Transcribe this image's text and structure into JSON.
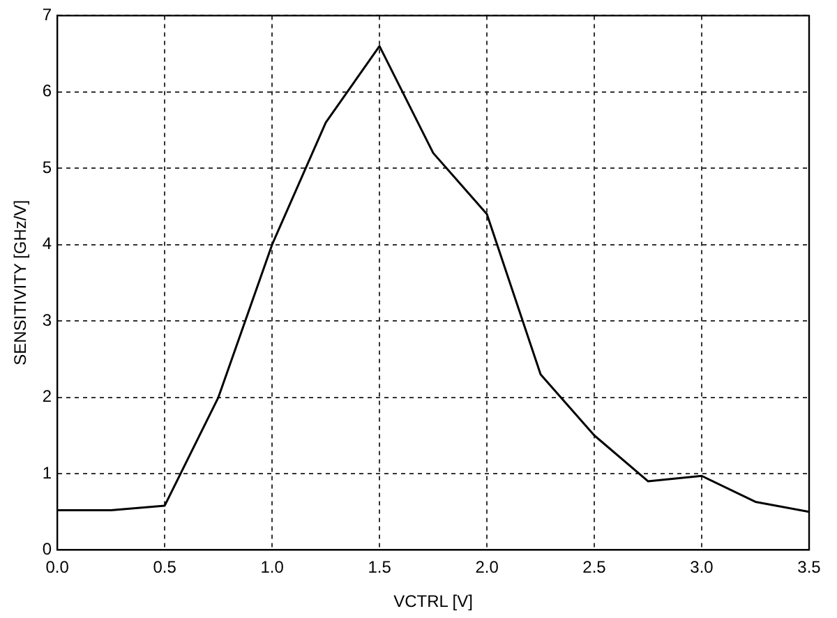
{
  "chart_data": {
    "type": "line",
    "xlabel": "VCTRL [V]",
    "ylabel": "SENSITIVITY [GHz/V]",
    "x": [
      0,
      0.25,
      0.5,
      0.75,
      1.0,
      1.25,
      1.5,
      1.75,
      2.0,
      2.25,
      2.5,
      2.75,
      3.0,
      3.25,
      3.5
    ],
    "series": [
      {
        "color": "#000000",
        "values": [
          0.52,
          0.52,
          0.58,
          2.0,
          4.0,
          5.6,
          6.6,
          5.2,
          4.4,
          2.3,
          1.5,
          0.9,
          0.97,
          0.63,
          0.5
        ]
      }
    ],
    "xlim": [
      0,
      3.5
    ],
    "xticks": [
      {
        "value": 0,
        "label": "0.0"
      },
      {
        "value": 0.5,
        "label": "0.5"
      },
      {
        "value": 1,
        "label": "1.0"
      },
      {
        "value": 1.5,
        "label": "1.5"
      },
      {
        "value": 2,
        "label": "2.0"
      },
      {
        "value": 2.5,
        "label": "2.5"
      },
      {
        "value": 3,
        "label": "3.0"
      },
      {
        "value": 3.5,
        "label": "3.5"
      }
    ],
    "ylim": [
      0,
      7
    ],
    "yticks": [
      0,
      1,
      2,
      3,
      4,
      5,
      6,
      7
    ],
    "grid": true,
    "legend": false,
    "marker": "none",
    "line_style": "solid"
  }
}
